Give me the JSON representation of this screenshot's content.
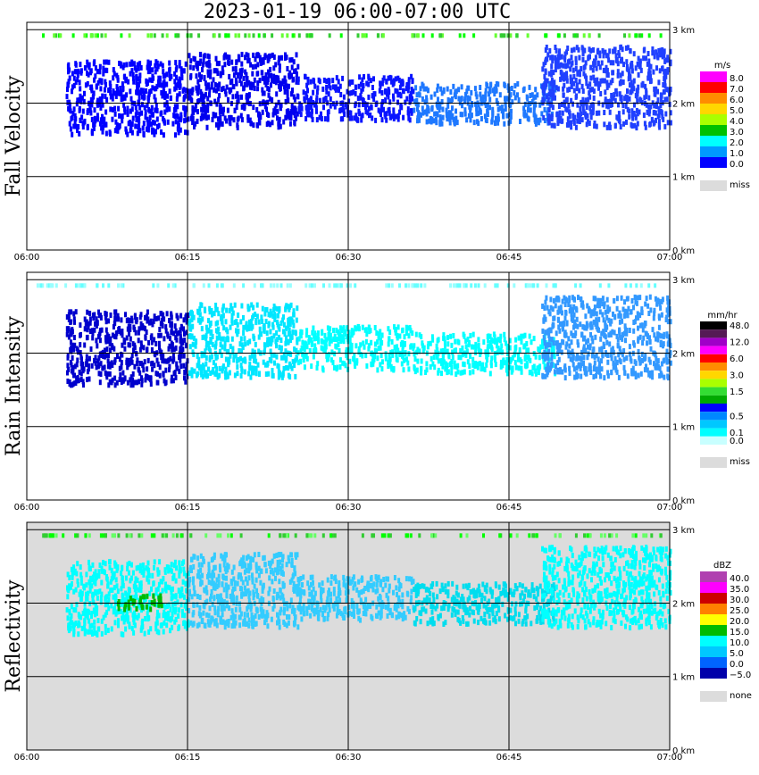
{
  "title": "2023-01-19   06:00-07:00 UTC",
  "x_tick_labels": [
    "06:00",
    "06:15",
    "06:30",
    "06:45",
    "07:00"
  ],
  "y_tick_labels": [
    "0 km",
    "1 km",
    "2 km",
    "3 km"
  ],
  "chart_data": [
    {
      "type": "heatmap",
      "ylabel": "Fall Velocity",
      "x_range": [
        "06:00",
        "07:00"
      ],
      "y_range_km": [
        0,
        3.1
      ],
      "background": "#ffffff",
      "legend_unit": "m/s",
      "legend": [
        {
          "label": "8.0",
          "color": "#ff00ff"
        },
        {
          "label": "7.0",
          "color": "#ff0000"
        },
        {
          "label": "6.0",
          "color": "#ff8c00"
        },
        {
          "label": "5.0",
          "color": "#ffd700"
        },
        {
          "label": "4.0",
          "color": "#aaff00"
        },
        {
          "label": "3.0",
          "color": "#00c000"
        },
        {
          "label": "2.0",
          "color": "#00ffff"
        },
        {
          "label": "1.0",
          "color": "#0099ff"
        },
        {
          "label": "0.0",
          "color": "#0000ff"
        }
      ],
      "miss_label": "miss",
      "echo_colors": [
        "#0000ff",
        "#0000ee",
        "#0a14ff",
        "#1e78ff",
        "#2040ff"
      ],
      "echo_blocks": [
        {
          "t0": 0.06,
          "t1": 0.25,
          "h0": 1.6,
          "h1": 2.6,
          "c": 0
        },
        {
          "t0": 0.25,
          "t1": 0.42,
          "h0": 1.7,
          "h1": 2.7,
          "c": 1
        },
        {
          "t0": 0.42,
          "t1": 0.6,
          "h0": 1.8,
          "h1": 2.4,
          "c": 2
        },
        {
          "t0": 0.6,
          "t1": 0.82,
          "h0": 1.75,
          "h1": 2.3,
          "c": 3
        },
        {
          "t0": 0.8,
          "t1": 1.0,
          "h0": 1.7,
          "h1": 2.8,
          "c": 4
        }
      ],
      "top_strip": {
        "h": 2.95,
        "colors": [
          "#66ff33",
          "#00ff00",
          "#33cc33"
        ]
      }
    },
    {
      "type": "heatmap",
      "ylabel": "Rain Intensity",
      "x_range": [
        "06:00",
        "07:00"
      ],
      "y_range_km": [
        0,
        3.1
      ],
      "background": "#ffffff",
      "legend_unit": "mm/hr",
      "legend": [
        {
          "label": "48.0",
          "color": "#000000"
        },
        {
          "label": "",
          "color": "#551a55"
        },
        {
          "label": "12.0",
          "color": "#a000c8"
        },
        {
          "label": "",
          "color": "#ff00ff"
        },
        {
          "label": "6.0",
          "color": "#ff0000"
        },
        {
          "label": "",
          "color": "#ff8c00"
        },
        {
          "label": "3.0",
          "color": "#ffd700"
        },
        {
          "label": "",
          "color": "#aaff00"
        },
        {
          "label": "1.5",
          "color": "#33dd33"
        },
        {
          "label": "",
          "color": "#00aa00"
        },
        {
          "label": "",
          "color": "#0000ff"
        },
        {
          "label": "0.5",
          "color": "#0088ff"
        },
        {
          "label": "",
          "color": "#00c8ff"
        },
        {
          "label": "0.1",
          "color": "#00ffff"
        },
        {
          "label": "0.0",
          "color": "#c8ffff"
        }
      ],
      "miss_label": "miss",
      "echo_colors": [
        "#00ffff",
        "#00e6ff",
        "#3399ff",
        "#0000cc",
        "#1e90ff"
      ],
      "echo_blocks": [
        {
          "t0": 0.06,
          "t1": 0.25,
          "h0": 1.6,
          "h1": 2.6,
          "c": 3
        },
        {
          "t0": 0.25,
          "t1": 0.42,
          "h0": 1.7,
          "h1": 2.7,
          "c": 1
        },
        {
          "t0": 0.42,
          "t1": 0.6,
          "h0": 1.8,
          "h1": 2.4,
          "c": 0
        },
        {
          "t0": 0.6,
          "t1": 0.82,
          "h0": 1.75,
          "h1": 2.3,
          "c": 0
        },
        {
          "t0": 0.8,
          "t1": 1.0,
          "h0": 1.7,
          "h1": 2.8,
          "c": 2
        }
      ],
      "top_strip": {
        "h": 2.95,
        "colors": [
          "#99ffff",
          "#66ffff"
        ]
      }
    },
    {
      "type": "heatmap",
      "ylabel": "Reflectivity",
      "x_range": [
        "06:00",
        "07:00"
      ],
      "y_range_km": [
        0,
        3.1
      ],
      "background": "#dcdcdc",
      "legend_unit": "dBZ",
      "legend": [
        {
          "label": "40.0",
          "color": "#b040b0"
        },
        {
          "label": "35.0",
          "color": "#ff00ff"
        },
        {
          "label": "30.0",
          "color": "#cc0000"
        },
        {
          "label": "25.0",
          "color": "#ff8000"
        },
        {
          "label": "20.0",
          "color": "#ffff00"
        },
        {
          "label": "15.0",
          "color": "#00bb00"
        },
        {
          "label": "10.0",
          "color": "#00ffff"
        },
        {
          "label": "5.0",
          "color": "#00c8ff"
        },
        {
          "label": "0.0",
          "color": "#0064ff"
        },
        {
          "label": "−5.0",
          "color": "#0000aa"
        }
      ],
      "miss_label": "none",
      "echo_colors": [
        "#00ffff",
        "#33ccff",
        "#00ddee",
        "#0000aa",
        "#00bb00"
      ],
      "echo_blocks": [
        {
          "t0": 0.06,
          "t1": 0.25,
          "h0": 1.6,
          "h1": 2.6,
          "c": 0
        },
        {
          "t0": 0.25,
          "t1": 0.42,
          "h0": 1.7,
          "h1": 2.7,
          "c": 1
        },
        {
          "t0": 0.42,
          "t1": 0.6,
          "h0": 1.8,
          "h1": 2.4,
          "c": 1
        },
        {
          "t0": 0.6,
          "t1": 0.82,
          "h0": 1.75,
          "h1": 2.3,
          "c": 2
        },
        {
          "t0": 0.8,
          "t1": 1.0,
          "h0": 1.7,
          "h1": 2.8,
          "c": 0
        },
        {
          "t0": 0.14,
          "t1": 0.21,
          "h0": 1.95,
          "h1": 2.15,
          "c": 4
        }
      ],
      "top_strip": {
        "h": 2.95,
        "colors": [
          "#33cc33",
          "#00ff00",
          "#66ff66"
        ]
      }
    }
  ]
}
